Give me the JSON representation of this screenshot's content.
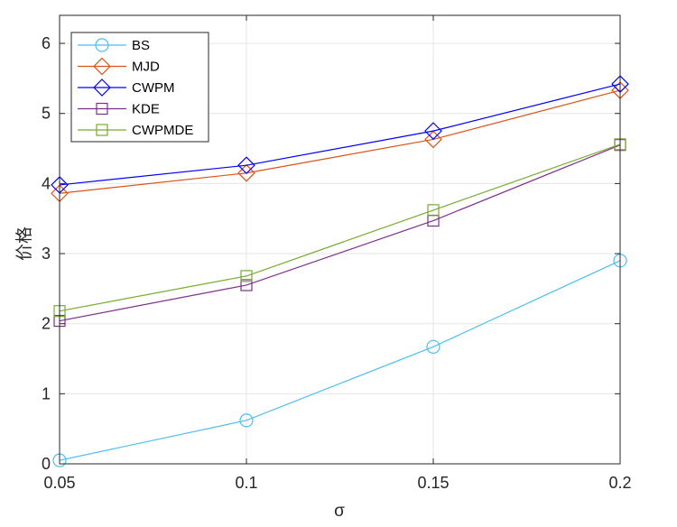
{
  "chart_data": {
    "type": "line",
    "title": "",
    "xlabel": "σ",
    "ylabel": "价格",
    "x": [
      0.05,
      0.1,
      0.15,
      0.2
    ],
    "x_tick_labels": [
      "0.05",
      "0.1",
      "0.15",
      "0.2"
    ],
    "y_tick_labels": [
      "0",
      "1",
      "2",
      "3",
      "4",
      "5",
      "6"
    ],
    "xlim": [
      0.05,
      0.2
    ],
    "ylim": [
      0,
      6.4
    ],
    "grid": true,
    "legend_position": "top-left",
    "series": [
      {
        "name": "BS",
        "color": "#4dbeee",
        "marker": "circle",
        "values": [
          0.05,
          0.62,
          1.67,
          2.9
        ]
      },
      {
        "name": "MJD",
        "color": "#d95319",
        "marker": "diamond",
        "values": [
          3.86,
          4.15,
          4.63,
          5.33
        ]
      },
      {
        "name": "CWPM",
        "color": "#0000ff",
        "marker": "diamond",
        "values": [
          3.98,
          4.26,
          4.75,
          5.42
        ]
      },
      {
        "name": "KDE",
        "color": "#7e2f8e",
        "marker": "square",
        "values": [
          2.04,
          2.55,
          3.47,
          4.55
        ]
      },
      {
        "name": "CWPMDE",
        "color": "#77ac30",
        "marker": "square",
        "values": [
          2.18,
          2.68,
          3.62,
          4.56
        ]
      }
    ]
  }
}
